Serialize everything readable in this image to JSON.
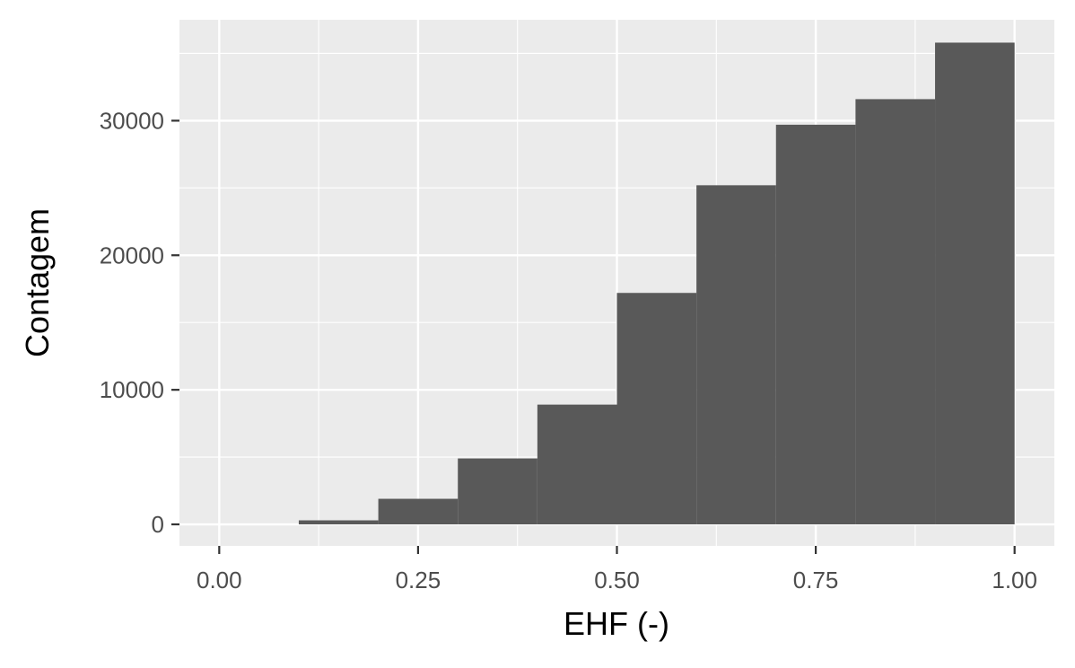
{
  "chart_data": {
    "type": "bar",
    "subtype": "histogram",
    "title": "",
    "xlabel": "EHF (-)",
    "ylabel": "Contagem",
    "xlim": [
      -0.05,
      1.05
    ],
    "ylim": [
      -1600,
      37500
    ],
    "x_ticks": [
      0.0,
      0.25,
      0.5,
      0.75,
      1.0
    ],
    "x_tick_labels": [
      "0.00",
      "0.25",
      "0.50",
      "0.75",
      "1.00"
    ],
    "y_ticks": [
      0,
      10000,
      20000,
      30000
    ],
    "y_tick_labels": [
      "0",
      "10000",
      "20000",
      "30000"
    ],
    "bins": [
      {
        "x0": 0.0,
        "x1": 0.1,
        "count": 0
      },
      {
        "x0": 0.1,
        "x1": 0.2,
        "count": 300
      },
      {
        "x0": 0.2,
        "x1": 0.3,
        "count": 1900
      },
      {
        "x0": 0.3,
        "x1": 0.4,
        "count": 4900
      },
      {
        "x0": 0.4,
        "x1": 0.5,
        "count": 8900
      },
      {
        "x0": 0.5,
        "x1": 0.6,
        "count": 17200
      },
      {
        "x0": 0.6,
        "x1": 0.7,
        "count": 25200
      },
      {
        "x0": 0.7,
        "x1": 0.8,
        "count": 29700
      },
      {
        "x0": 0.8,
        "x1": 0.9,
        "count": 31600
      },
      {
        "x0": 0.9,
        "x1": 1.0,
        "count": 35800
      }
    ],
    "grid": true,
    "colors": {
      "panel": "#ebebeb",
      "grid": "#ffffff",
      "bar": "#595959",
      "tick": "#333333"
    }
  }
}
